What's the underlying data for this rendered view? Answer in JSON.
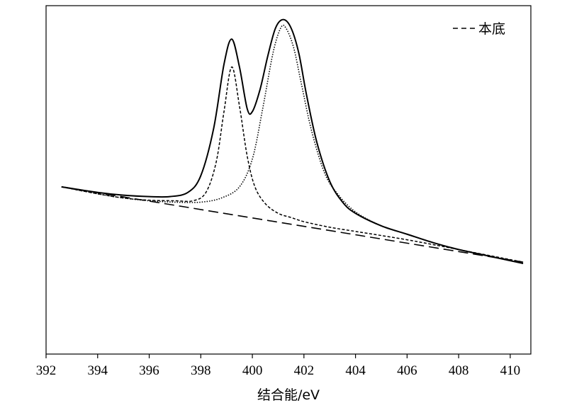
{
  "chart_data": {
    "type": "line",
    "title": "",
    "xlabel": "结合能/eV",
    "ylabel": "",
    "xlim": [
      392,
      410.8
    ],
    "ylim": [
      -0.15,
      1.1
    ],
    "y_ticks_visible": false,
    "x_ticks": [
      392,
      394,
      396,
      398,
      400,
      402,
      404,
      406,
      408,
      410
    ],
    "x_tick_labels": [
      "392",
      "394",
      "396",
      "398",
      "400",
      "402",
      "404",
      "406",
      "408",
      "410"
    ],
    "grid": false,
    "legend": {
      "placement": "top-right",
      "entries": [
        {
          "label": "本底",
          "style": "dashed"
        }
      ]
    },
    "series": [
      {
        "name": "本底",
        "style": "long-dashed",
        "x": [
          392.6,
          410.5
        ],
        "y": [
          0.45,
          0.18
        ]
      },
      {
        "style": "solid",
        "x": [
          392.6,
          394,
          395,
          396,
          396.8,
          397.5,
          398,
          398.5,
          398.9,
          399.2,
          399.5,
          399.8,
          400.0,
          400.3,
          400.6,
          400.9,
          401.2,
          401.5,
          401.8,
          402.1,
          402.5,
          403,
          403.5,
          404,
          405,
          406,
          407,
          408,
          409,
          410.5
        ],
        "y": [
          0.45,
          0.43,
          0.42,
          0.415,
          0.415,
          0.43,
          0.49,
          0.66,
          0.89,
          0.98,
          0.88,
          0.73,
          0.72,
          0.8,
          0.92,
          1.02,
          1.05,
          1.02,
          0.93,
          0.78,
          0.61,
          0.47,
          0.395,
          0.355,
          0.31,
          0.28,
          0.25,
          0.225,
          0.205,
          0.175
        ]
      },
      {
        "style": "short-dashed",
        "x": [
          392.6,
          394,
          395,
          396,
          397,
          397.7,
          398.2,
          398.6,
          398.9,
          399.2,
          399.5,
          399.8,
          400.1,
          400.5,
          401,
          401.5,
          402,
          403,
          404,
          406,
          408,
          410.5
        ],
        "y": [
          0.45,
          0.425,
          0.41,
          0.402,
          0.4,
          0.4,
          0.43,
          0.54,
          0.72,
          0.88,
          0.74,
          0.56,
          0.45,
          0.39,
          0.355,
          0.34,
          0.325,
          0.305,
          0.29,
          0.26,
          0.225,
          0.18
        ]
      },
      {
        "style": "dotted",
        "x": [
          392.6,
          394,
          395,
          396,
          397,
          398,
          398.8,
          399.5,
          400.0,
          400.4,
          400.8,
          401.1,
          401.3,
          401.6,
          401.9,
          402.3,
          402.8,
          403.3,
          404,
          405,
          406,
          407,
          408,
          409,
          410.5
        ],
        "y": [
          0.45,
          0.425,
          0.41,
          0.4,
          0.395,
          0.395,
          0.41,
          0.45,
          0.55,
          0.73,
          0.93,
          1.02,
          1.02,
          0.95,
          0.82,
          0.65,
          0.5,
          0.425,
          0.36,
          0.31,
          0.28,
          0.25,
          0.225,
          0.205,
          0.175
        ]
      }
    ]
  }
}
